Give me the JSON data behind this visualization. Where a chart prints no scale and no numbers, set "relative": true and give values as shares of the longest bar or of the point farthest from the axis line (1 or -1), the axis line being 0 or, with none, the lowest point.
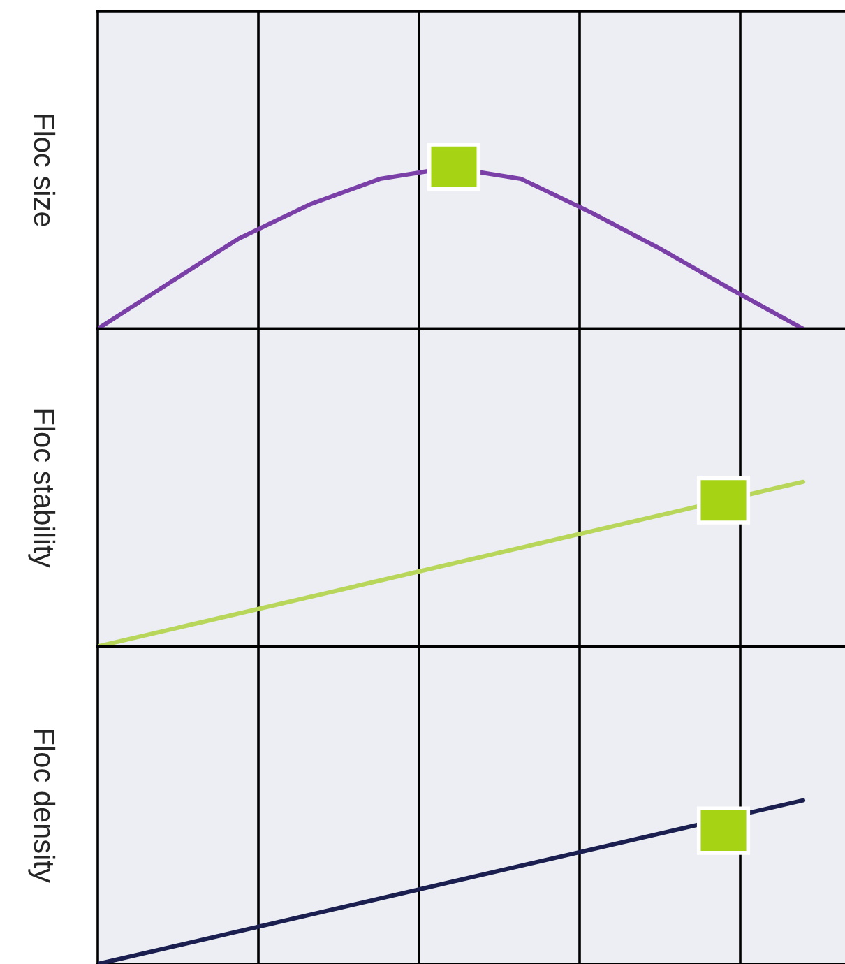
{
  "chart_data": [
    {
      "type": "line",
      "ylabel": "Floc size",
      "relative": true,
      "grid": "x",
      "categories": [
        null,
        null,
        null,
        null,
        null,
        null,
        null,
        null,
        null,
        null,
        null
      ],
      "series": [
        {
          "color": "#7b3fa8",
          "values": [
            0,
            0.28,
            0.56,
            0.77,
            0.93,
            1.0,
            0.93,
            0.72,
            0.49,
            0.24,
            0
          ]
        }
      ]
    },
    {
      "type": "line",
      "ylabel": "Floc stability",
      "relative": true,
      "grid": "x",
      "categories": [
        null,
        null,
        null
      ],
      "series": [
        {
          "color": "#b8d65a",
          "values": [
            0,
            0.5,
            1.0
          ]
        }
      ]
    },
    {
      "type": "line",
      "ylabel": "Floc density",
      "relative": true,
      "grid": "x",
      "categories": [
        null,
        null,
        null
      ],
      "series": [
        {
          "color": "#1b1f4f",
          "values": [
            0,
            0.5,
            1.0
          ]
        }
      ]
    }
  ]
}
